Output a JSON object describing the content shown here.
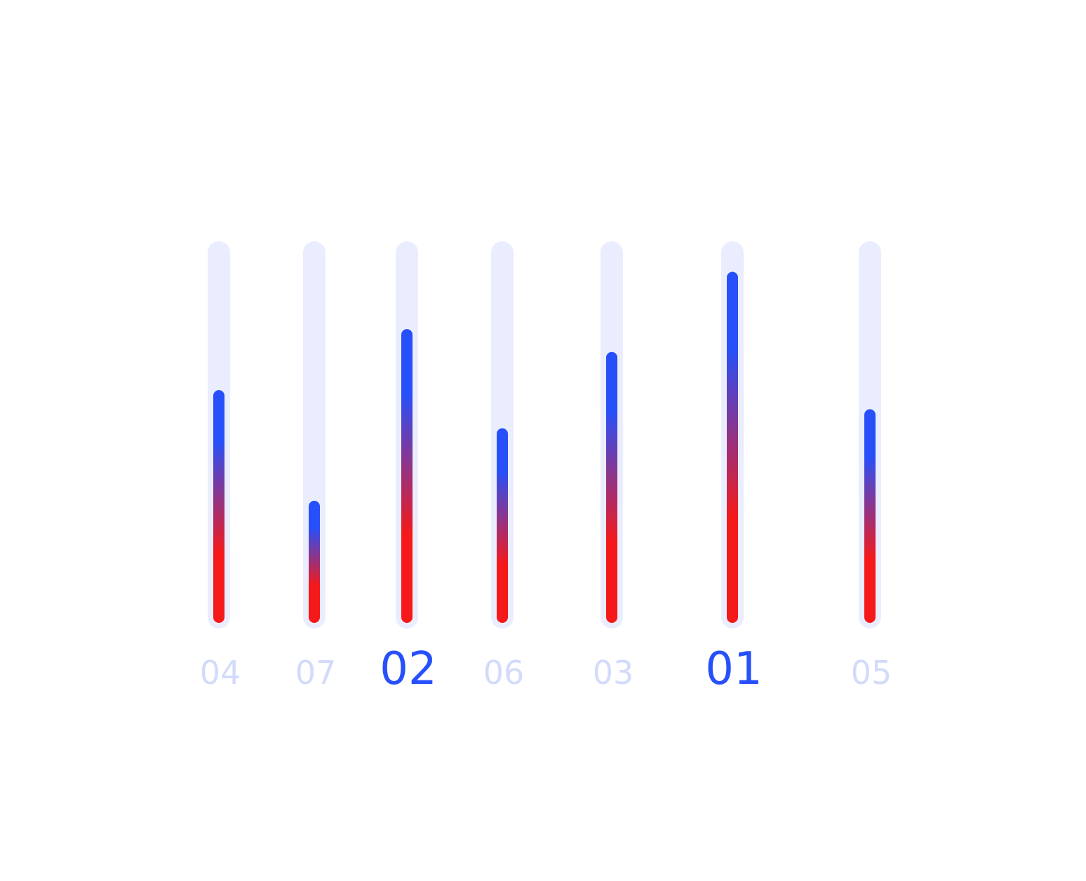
{
  "chart_data": {
    "type": "bar",
    "orientation": "vertical",
    "categories": [
      "04",
      "07",
      "02",
      "06",
      "03",
      "01",
      "05"
    ],
    "values": [
      61,
      32,
      77,
      51,
      71,
      92,
      56
    ],
    "highlighted": [
      "02",
      "01"
    ],
    "ylim": [
      0,
      100
    ],
    "title": "",
    "xlabel": "",
    "ylabel": "",
    "grid": false,
    "legend": "none"
  },
  "colors": {
    "track": "#EAEDFD",
    "bar_top": "#2750FA",
    "bar_bottom": "#F51919",
    "label_normal": "#D3DBFB",
    "label_highlight": "#2750FA",
    "background": "#FFFFFF"
  }
}
